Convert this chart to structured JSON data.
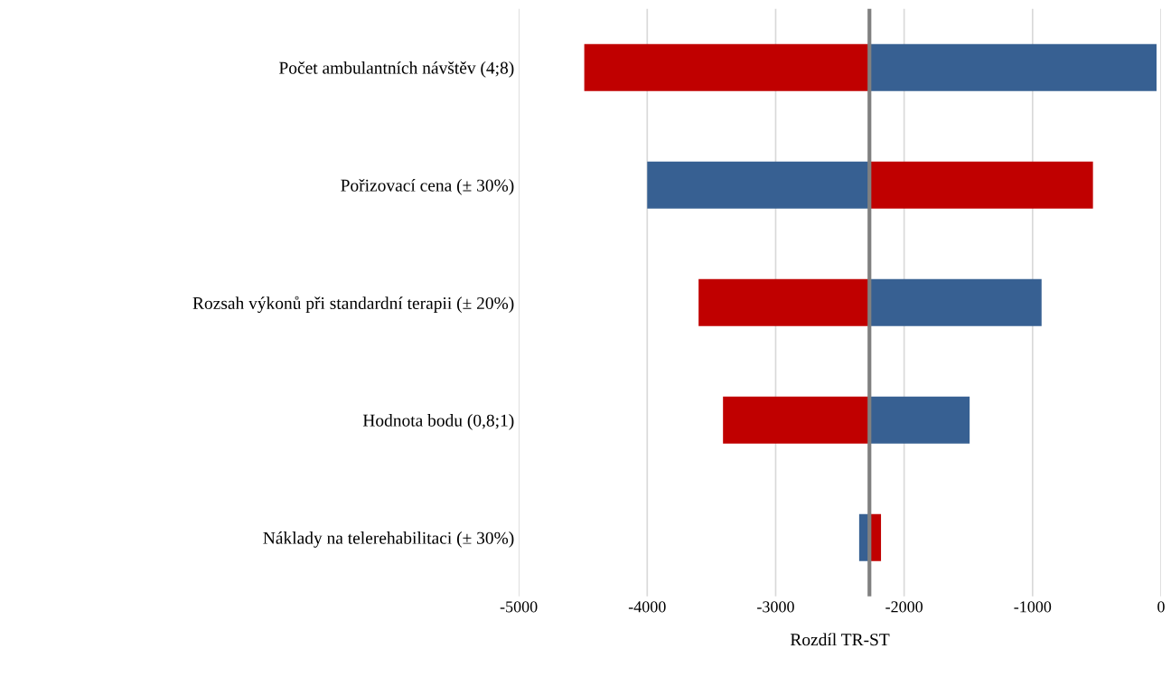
{
  "chart_data": {
    "type": "bar",
    "orientation": "horizontal",
    "xlabel": "Rozdíl TR-ST",
    "categories": [
      "Počet ambulantních návštěv (4;8)",
      "Pořizovací cena (± 30%)",
      "Rozsah výkonů při standardní terapii (± 20%)",
      "Hodnota bodu (0,8;1)",
      "Náklady na telerehabilitaci (± 30%)"
    ],
    "series": [
      {
        "color": "#c00000",
        "base": [
          -2270,
          -2270,
          -2270,
          -2270,
          -2270
        ],
        "values": [
          -2220,
          1740,
          -1330,
          -1140,
          90
        ]
      },
      {
        "color": "#376092",
        "base": [
          -2270,
          -2270,
          -2270,
          -2270,
          -2270
        ],
        "values": [
          2235,
          -1730,
          1340,
          780,
          -80
        ]
      }
    ],
    "xlim": [
      -5000,
      0
    ],
    "xticks": [
      -5000,
      -4000,
      -3000,
      -2000,
      -1000,
      0
    ],
    "grid": "x",
    "ref_lines": [
      {
        "axis": "x",
        "value": -2270,
        "color": "#808080"
      }
    ]
  }
}
